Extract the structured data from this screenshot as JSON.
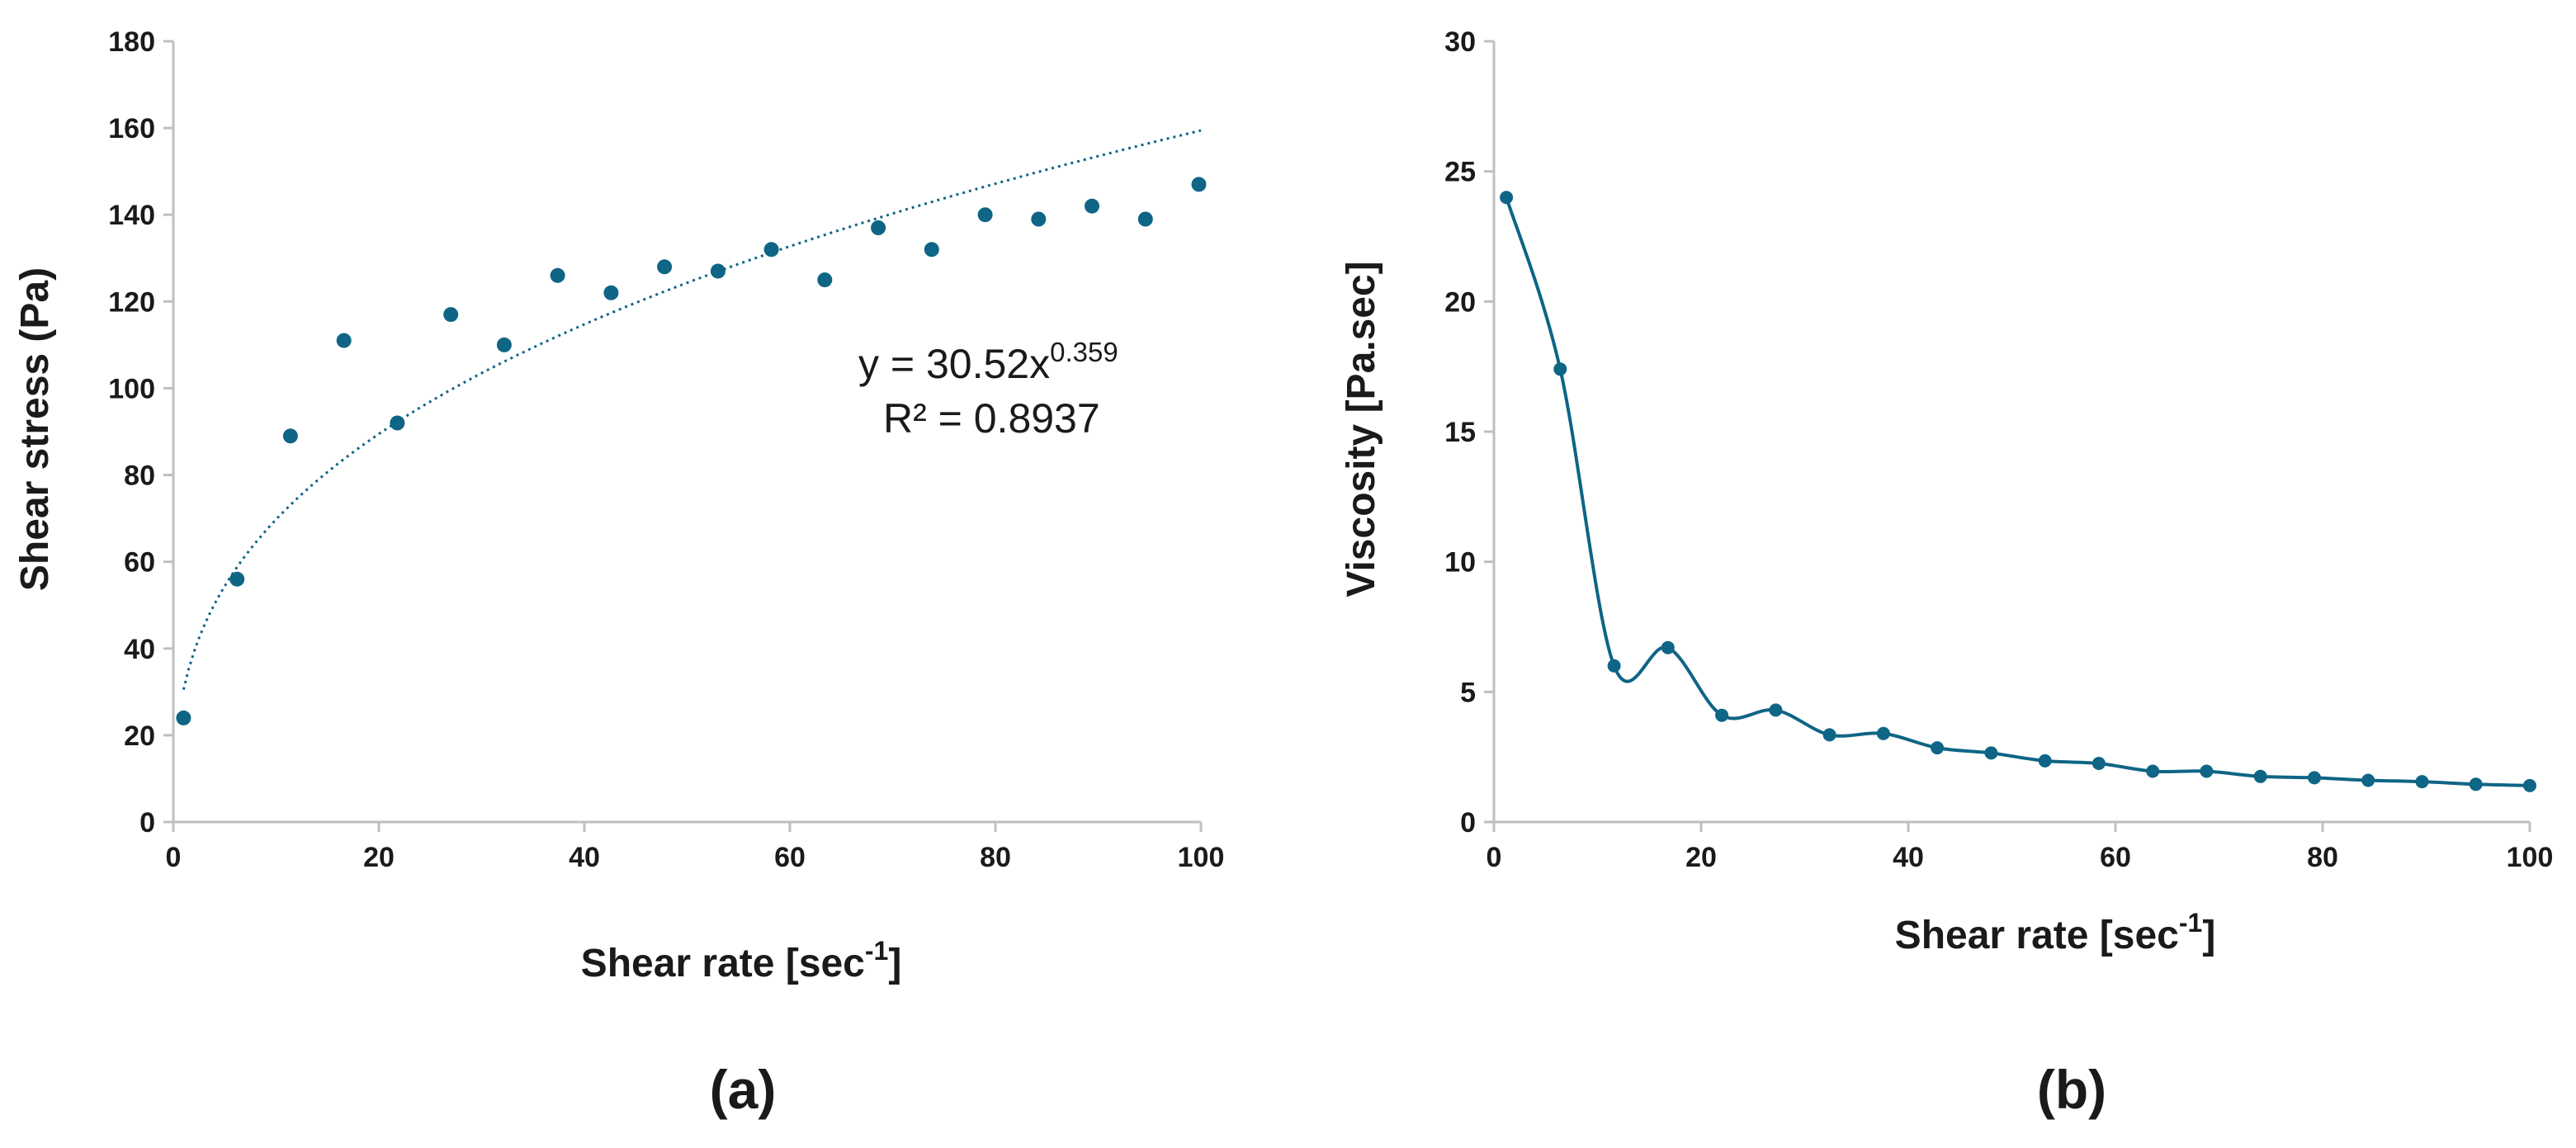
{
  "colors": {
    "series": "#0e6585",
    "text": "#1a1a1a",
    "axis": "#bfbfbf"
  },
  "chart_data": [
    {
      "type": "scatter",
      "panel_label": "(a)",
      "xlabel": {
        "base": "Shear rate [sec",
        "sup": "-1",
        "tail": "]"
      },
      "ylabel": "Shear stress (Pa)",
      "xlim": [
        0,
        100
      ],
      "ylim": [
        0,
        180
      ],
      "xticks": [
        "0",
        "20",
        "40",
        "60",
        "80",
        "100"
      ],
      "yticks": [
        "0",
        "20",
        "40",
        "60",
        "80",
        "100",
        "120",
        "140",
        "160",
        "180"
      ],
      "grid": false,
      "series": [
        {
          "name": "Shear stress",
          "x": [
            1,
            6.2,
            11.4,
            16.6,
            21.8,
            27.0,
            32.2,
            37.4,
            42.6,
            47.8,
            53.0,
            58.2,
            63.4,
            68.6,
            73.8,
            79.0,
            84.2,
            89.4,
            94.6,
            99.8
          ],
          "y": [
            24,
            56,
            89,
            111,
            92,
            117,
            110,
            126,
            122,
            128,
            127,
            132,
            125,
            137,
            132,
            140,
            139,
            142,
            139,
            147
          ]
        }
      ],
      "trendline": {
        "type": "power",
        "a": 30.52,
        "b": 0.359,
        "x_range": [
          1,
          100
        ],
        "style": "dotted"
      },
      "equation": {
        "prefix": "y = 30.52x",
        "exponent": "0.359",
        "r2": "R² = 0.8937"
      }
    },
    {
      "type": "line",
      "panel_label": "(b)",
      "xlabel": {
        "base": "Shear rate [sec",
        "sup": "-1",
        "tail": "]"
      },
      "ylabel": "Viscosity [Pa.sec]",
      "xlim": [
        0,
        100
      ],
      "ylim": [
        0,
        30
      ],
      "xticks": [
        "0",
        "20",
        "40",
        "60",
        "80",
        "100"
      ],
      "yticks": [
        "0",
        "5",
        "10",
        "15",
        "20",
        "25",
        "30"
      ],
      "grid": false,
      "smooth": true,
      "series": [
        {
          "name": "Viscosity",
          "x": [
            1.2,
            6.4,
            11.6,
            16.8,
            22.0,
            27.2,
            32.4,
            37.6,
            42.8,
            48.0,
            53.2,
            58.4,
            63.6,
            68.8,
            74.0,
            79.2,
            84.4,
            89.6,
            94.8,
            100
          ],
          "y": [
            24.0,
            17.4,
            6.0,
            6.7,
            4.1,
            4.3,
            3.35,
            3.4,
            2.85,
            2.65,
            2.35,
            2.25,
            1.95,
            1.95,
            1.75,
            1.7,
            1.6,
            1.55,
            1.45,
            1.4
          ]
        }
      ]
    }
  ]
}
